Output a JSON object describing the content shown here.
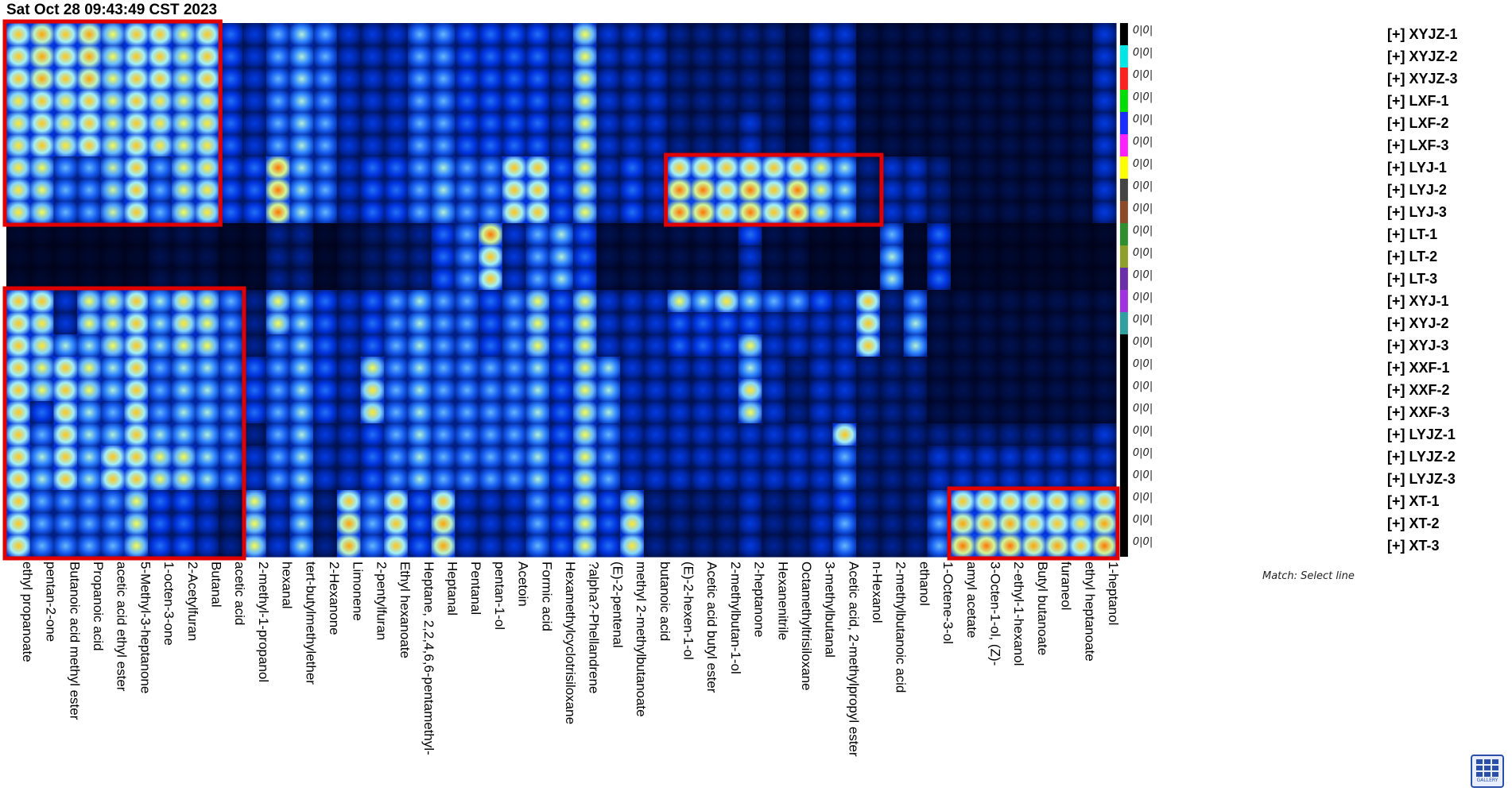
{
  "header": {
    "timestamp": "Sat Oct 28 09:43:49 CST 2023"
  },
  "footer": {
    "match_text": "Match: Select line",
    "gallery_label": "GALLERY"
  },
  "chart_data": {
    "type": "heatmap",
    "title": "",
    "row_marker": "0|0|",
    "samples": [
      {
        "name": "[+] XYJZ-1",
        "color": "#000000"
      },
      {
        "name": "[+] XYJZ-2",
        "color": "#00e5e5"
      },
      {
        "name": "[+] XYJZ-3",
        "color": "#ff2020"
      },
      {
        "name": "[+] LXF-1",
        "color": "#00dd00"
      },
      {
        "name": "[+] LXF-2",
        "color": "#1a2cff"
      },
      {
        "name": "[+] LXF-3",
        "color": "#ff20ff"
      },
      {
        "name": "[+] LYJ-1",
        "color": "#ffff00"
      },
      {
        "name": "[+] LYJ-2",
        "color": "#444444"
      },
      {
        "name": "[+] LYJ-3",
        "color": "#8b4a2a"
      },
      {
        "name": "[+] LT-1",
        "color": "#2f8f2f"
      },
      {
        "name": "[+] LT-2",
        "color": "#8fa02a"
      },
      {
        "name": "[+] LT-3",
        "color": "#6a2fa8"
      },
      {
        "name": "[+] XYJ-1",
        "color": "#a032e0"
      },
      {
        "name": "[+] XYJ-2",
        "color": "#2f9f9f"
      },
      {
        "name": "[+] XYJ-3",
        "color": "#000000"
      },
      {
        "name": "[+] XXF-1",
        "color": "#000000"
      },
      {
        "name": "[+] XXF-2",
        "color": "#000000"
      },
      {
        "name": "[+] XXF-3",
        "color": "#000000"
      },
      {
        "name": "[+] LYJZ-1",
        "color": "#000000"
      },
      {
        "name": "[+] LYJZ-2",
        "color": "#000000"
      },
      {
        "name": "[+] LYJZ-3",
        "color": "#000000"
      },
      {
        "name": "[+] XT-1",
        "color": "#000000"
      },
      {
        "name": "[+] XT-2",
        "color": "#000000"
      },
      {
        "name": "[+] XT-3",
        "color": "#000000"
      }
    ],
    "compounds": [
      "ethyl propanoate",
      "pentan-2-one",
      "Butanoic acid methyl ester",
      "Propanoic acid",
      "acetic acid ethyl ester",
      "5-Methyl-3-heptanone",
      "1-octen-3-one",
      "2-Acetylfuran",
      "Butanal",
      "acetic acid",
      "2-methyl-1-propanol",
      "hexanal",
      "tert-butylmethylether",
      "2-Hexanone",
      "Limonene",
      "2-pentylfuran",
      "Ethyl hexanoate",
      "Heptane, 2,2,4,6,6-pentamethyl-",
      "Heptanal",
      "Pentanal",
      "pentan-1-ol",
      "Acetoin",
      "Formic acid",
      "Hexamethylcyclotrisiloxane",
      "?alpha?-Phellandrene",
      "(E)-2-pentenal",
      "methyl 2-methylbutanoate",
      "butanoic acid",
      "(E)-2-hexen-1-ol",
      "Acetic acid butyl ester",
      "2-methylbutan-1-ol",
      "2-heptanone",
      "Hexanenitrile",
      "Octamethyltrisiloxane",
      "3-methylbutanal",
      "Acetic acid, 2-methylpropyl ester",
      "n-Hexanol",
      "2-methylbutanoic acid",
      "ethanol",
      "1-Octene-3-ol",
      "amyl acetate",
      "3-Octen-1-ol, (Z)-",
      "2-ethyl-1-hexanol",
      "Butyl butanoate",
      "furaneol",
      "ethyl heptanoate",
      "1-heptanol"
    ],
    "colorscale": [
      "#000010",
      "#001a6e",
      "#0033dd",
      "#2a7fff",
      "#9ff0ff",
      "#ffff40",
      "#ffa000",
      "#ff1000"
    ],
    "highlight_color": "#e00000",
    "values": [
      [
        0.8,
        0.85,
        0.8,
        0.85,
        0.7,
        0.8,
        0.8,
        0.7,
        0.8,
        0.4,
        0.3,
        0.5,
        0.6,
        0.5,
        0.3,
        0.3,
        0.3,
        0.5,
        0.5,
        0.4,
        0.4,
        0.4,
        0.4,
        0.3,
        0.7,
        0.3,
        0.3,
        0.3,
        0.2,
        0.2,
        0.2,
        0.2,
        0.2,
        0.1,
        0.3,
        0.3,
        0.1,
        0.1,
        0.1,
        0.1,
        0.1,
        0.1,
        0.1,
        0.1,
        0.1,
        0.1,
        0.3
      ],
      [
        0.8,
        0.85,
        0.8,
        0.85,
        0.7,
        0.8,
        0.8,
        0.7,
        0.8,
        0.4,
        0.3,
        0.5,
        0.6,
        0.5,
        0.3,
        0.3,
        0.3,
        0.5,
        0.5,
        0.4,
        0.4,
        0.4,
        0.4,
        0.3,
        0.7,
        0.3,
        0.3,
        0.3,
        0.2,
        0.2,
        0.2,
        0.2,
        0.2,
        0.1,
        0.3,
        0.3,
        0.1,
        0.1,
        0.1,
        0.1,
        0.1,
        0.1,
        0.1,
        0.1,
        0.1,
        0.1,
        0.3
      ],
      [
        0.8,
        0.85,
        0.8,
        0.85,
        0.7,
        0.8,
        0.8,
        0.7,
        0.8,
        0.4,
        0.3,
        0.5,
        0.6,
        0.5,
        0.3,
        0.3,
        0.3,
        0.5,
        0.5,
        0.4,
        0.4,
        0.4,
        0.4,
        0.3,
        0.7,
        0.3,
        0.3,
        0.3,
        0.2,
        0.2,
        0.2,
        0.2,
        0.2,
        0.1,
        0.3,
        0.3,
        0.1,
        0.1,
        0.1,
        0.1,
        0.1,
        0.1,
        0.1,
        0.1,
        0.1,
        0.1,
        0.3
      ],
      [
        0.75,
        0.8,
        0.75,
        0.8,
        0.7,
        0.8,
        0.75,
        0.7,
        0.75,
        0.4,
        0.3,
        0.5,
        0.6,
        0.5,
        0.3,
        0.3,
        0.3,
        0.5,
        0.5,
        0.4,
        0.4,
        0.4,
        0.4,
        0.3,
        0.7,
        0.3,
        0.3,
        0.3,
        0.2,
        0.2,
        0.2,
        0.2,
        0.2,
        0.1,
        0.3,
        0.3,
        0.1,
        0.1,
        0.1,
        0.1,
        0.1,
        0.1,
        0.1,
        0.1,
        0.1,
        0.1,
        0.3
      ],
      [
        0.75,
        0.8,
        0.75,
        0.8,
        0.7,
        0.8,
        0.75,
        0.7,
        0.75,
        0.4,
        0.3,
        0.5,
        0.6,
        0.5,
        0.3,
        0.3,
        0.3,
        0.5,
        0.5,
        0.4,
        0.4,
        0.4,
        0.4,
        0.3,
        0.7,
        0.3,
        0.3,
        0.3,
        0.2,
        0.2,
        0.2,
        0.3,
        0.2,
        0.1,
        0.3,
        0.3,
        0.1,
        0.1,
        0.1,
        0.1,
        0.1,
        0.1,
        0.1,
        0.1,
        0.1,
        0.1,
        0.3
      ],
      [
        0.75,
        0.8,
        0.75,
        0.8,
        0.7,
        0.8,
        0.75,
        0.7,
        0.75,
        0.4,
        0.3,
        0.5,
        0.6,
        0.5,
        0.3,
        0.3,
        0.3,
        0.5,
        0.5,
        0.4,
        0.4,
        0.4,
        0.4,
        0.3,
        0.7,
        0.3,
        0.3,
        0.3,
        0.2,
        0.2,
        0.2,
        0.3,
        0.2,
        0.1,
        0.3,
        0.3,
        0.1,
        0.1,
        0.1,
        0.1,
        0.1,
        0.1,
        0.1,
        0.1,
        0.1,
        0.1,
        0.3
      ],
      [
        0.75,
        0.7,
        0.5,
        0.5,
        0.65,
        0.8,
        0.5,
        0.7,
        0.75,
        0.4,
        0.4,
        0.9,
        0.6,
        0.5,
        0.3,
        0.4,
        0.4,
        0.5,
        0.6,
        0.5,
        0.5,
        0.8,
        0.8,
        0.4,
        0.7,
        0.3,
        0.4,
        0.3,
        0.8,
        0.8,
        0.8,
        0.8,
        0.8,
        0.8,
        0.7,
        0.6,
        0.2,
        0.3,
        0.3,
        0.2,
        0.1,
        0.1,
        0.1,
        0.1,
        0.1,
        0.1,
        0.3
      ],
      [
        0.75,
        0.7,
        0.5,
        0.5,
        0.65,
        0.8,
        0.5,
        0.7,
        0.75,
        0.4,
        0.4,
        0.9,
        0.6,
        0.5,
        0.3,
        0.4,
        0.4,
        0.5,
        0.6,
        0.5,
        0.5,
        0.8,
        0.8,
        0.4,
        0.7,
        0.3,
        0.4,
        0.3,
        0.9,
        0.9,
        0.8,
        0.9,
        0.8,
        0.9,
        0.7,
        0.6,
        0.2,
        0.3,
        0.3,
        0.2,
        0.1,
        0.1,
        0.1,
        0.1,
        0.1,
        0.1,
        0.3
      ],
      [
        0.75,
        0.7,
        0.5,
        0.5,
        0.65,
        0.8,
        0.5,
        0.7,
        0.75,
        0.4,
        0.4,
        0.9,
        0.6,
        0.5,
        0.3,
        0.4,
        0.4,
        0.5,
        0.6,
        0.5,
        0.5,
        0.8,
        0.8,
        0.4,
        0.7,
        0.3,
        0.4,
        0.3,
        0.9,
        0.9,
        0.8,
        0.9,
        0.8,
        0.9,
        0.7,
        0.6,
        0.2,
        0.3,
        0.3,
        0.2,
        0.1,
        0.1,
        0.1,
        0.1,
        0.1,
        0.1,
        0.3
      ],
      [
        0.05,
        0.05,
        0.05,
        0.05,
        0.05,
        0.05,
        0.1,
        0.1,
        0.1,
        0.05,
        0.05,
        0.2,
        0.2,
        0.05,
        0.1,
        0.15,
        0.2,
        0.2,
        0.4,
        0.5,
        0.9,
        0.3,
        0.5,
        0.6,
        0.4,
        0.1,
        0.1,
        0.1,
        0.1,
        0.1,
        0.1,
        0.4,
        0.1,
        0.1,
        0.05,
        0.05,
        0.05,
        0.5,
        0.05,
        0.4,
        0.05,
        0.05,
        0.05,
        0.05,
        0.05,
        0.05,
        0.05
      ],
      [
        0.05,
        0.05,
        0.05,
        0.05,
        0.05,
        0.05,
        0.1,
        0.1,
        0.1,
        0.05,
        0.05,
        0.2,
        0.2,
        0.05,
        0.1,
        0.15,
        0.2,
        0.2,
        0.4,
        0.5,
        0.8,
        0.3,
        0.5,
        0.6,
        0.4,
        0.1,
        0.1,
        0.1,
        0.1,
        0.1,
        0.1,
        0.3,
        0.1,
        0.1,
        0.05,
        0.05,
        0.05,
        0.6,
        0.05,
        0.4,
        0.05,
        0.05,
        0.05,
        0.05,
        0.05,
        0.05,
        0.05
      ],
      [
        0.05,
        0.05,
        0.05,
        0.05,
        0.05,
        0.05,
        0.1,
        0.1,
        0.1,
        0.05,
        0.05,
        0.2,
        0.2,
        0.05,
        0.1,
        0.15,
        0.2,
        0.2,
        0.4,
        0.5,
        0.8,
        0.3,
        0.5,
        0.6,
        0.4,
        0.1,
        0.1,
        0.1,
        0.1,
        0.1,
        0.1,
        0.3,
        0.1,
        0.1,
        0.05,
        0.05,
        0.05,
        0.6,
        0.05,
        0.4,
        0.05,
        0.05,
        0.05,
        0.05,
        0.05,
        0.05,
        0.05
      ],
      [
        0.8,
        0.8,
        0.3,
        0.7,
        0.7,
        0.8,
        0.6,
        0.75,
        0.7,
        0.5,
        0.2,
        0.7,
        0.6,
        0.4,
        0.3,
        0.4,
        0.5,
        0.6,
        0.5,
        0.5,
        0.4,
        0.5,
        0.7,
        0.4,
        0.7,
        0.3,
        0.3,
        0.3,
        0.7,
        0.6,
        0.75,
        0.6,
        0.5,
        0.5,
        0.4,
        0.3,
        0.8,
        0.2,
        0.5,
        0.1,
        0.1,
        0.1,
        0.1,
        0.1,
        0.1,
        0.1,
        0.1
      ],
      [
        0.8,
        0.75,
        0.3,
        0.7,
        0.7,
        0.8,
        0.6,
        0.75,
        0.7,
        0.5,
        0.2,
        0.7,
        0.6,
        0.4,
        0.3,
        0.4,
        0.5,
        0.6,
        0.5,
        0.5,
        0.4,
        0.5,
        0.7,
        0.4,
        0.7,
        0.3,
        0.3,
        0.3,
        0.4,
        0.4,
        0.4,
        0.4,
        0.3,
        0.3,
        0.3,
        0.3,
        0.8,
        0.2,
        0.6,
        0.1,
        0.1,
        0.1,
        0.1,
        0.1,
        0.1,
        0.1,
        0.1
      ],
      [
        0.8,
        0.75,
        0.6,
        0.6,
        0.7,
        0.8,
        0.6,
        0.7,
        0.7,
        0.5,
        0.2,
        0.5,
        0.6,
        0.4,
        0.3,
        0.4,
        0.5,
        0.6,
        0.5,
        0.5,
        0.4,
        0.5,
        0.7,
        0.4,
        0.7,
        0.3,
        0.3,
        0.3,
        0.4,
        0.4,
        0.4,
        0.7,
        0.3,
        0.3,
        0.3,
        0.3,
        0.8,
        0.2,
        0.6,
        0.1,
        0.1,
        0.1,
        0.1,
        0.1,
        0.1,
        0.1,
        0.1
      ],
      [
        0.8,
        0.7,
        0.8,
        0.7,
        0.6,
        0.8,
        0.5,
        0.6,
        0.6,
        0.5,
        0.4,
        0.5,
        0.6,
        0.4,
        0.3,
        0.7,
        0.5,
        0.6,
        0.5,
        0.5,
        0.5,
        0.5,
        0.6,
        0.4,
        0.7,
        0.6,
        0.3,
        0.3,
        0.3,
        0.3,
        0.3,
        0.6,
        0.3,
        0.2,
        0.3,
        0.3,
        0.2,
        0.2,
        0.2,
        0.1,
        0.1,
        0.1,
        0.1,
        0.1,
        0.1,
        0.1,
        0.1
      ],
      [
        0.8,
        0.7,
        0.8,
        0.7,
        0.6,
        0.8,
        0.5,
        0.6,
        0.6,
        0.5,
        0.4,
        0.5,
        0.6,
        0.4,
        0.3,
        0.75,
        0.5,
        0.6,
        0.5,
        0.5,
        0.5,
        0.5,
        0.6,
        0.4,
        0.7,
        0.6,
        0.3,
        0.3,
        0.3,
        0.3,
        0.3,
        0.75,
        0.3,
        0.2,
        0.3,
        0.3,
        0.2,
        0.2,
        0.2,
        0.1,
        0.1,
        0.1,
        0.1,
        0.1,
        0.1,
        0.1,
        0.1
      ],
      [
        0.8,
        0.4,
        0.8,
        0.6,
        0.5,
        0.8,
        0.5,
        0.6,
        0.6,
        0.5,
        0.4,
        0.5,
        0.6,
        0.4,
        0.3,
        0.75,
        0.5,
        0.6,
        0.5,
        0.5,
        0.5,
        0.5,
        0.6,
        0.4,
        0.7,
        0.6,
        0.3,
        0.3,
        0.3,
        0.3,
        0.3,
        0.7,
        0.3,
        0.2,
        0.3,
        0.3,
        0.2,
        0.2,
        0.2,
        0.1,
        0.1,
        0.1,
        0.1,
        0.1,
        0.1,
        0.1,
        0.1
      ],
      [
        0.8,
        0.5,
        0.8,
        0.6,
        0.6,
        0.8,
        0.6,
        0.6,
        0.6,
        0.5,
        0.2,
        0.5,
        0.6,
        0.3,
        0.3,
        0.4,
        0.5,
        0.6,
        0.5,
        0.5,
        0.5,
        0.5,
        0.6,
        0.4,
        0.7,
        0.5,
        0.3,
        0.3,
        0.3,
        0.3,
        0.3,
        0.3,
        0.3,
        0.3,
        0.3,
        0.8,
        0.2,
        0.2,
        0.2,
        0.2,
        0.2,
        0.2,
        0.2,
        0.2,
        0.2,
        0.2,
        0.3
      ],
      [
        0.8,
        0.6,
        0.8,
        0.6,
        0.8,
        0.8,
        0.7,
        0.7,
        0.6,
        0.5,
        0.3,
        0.5,
        0.6,
        0.3,
        0.3,
        0.4,
        0.5,
        0.6,
        0.5,
        0.5,
        0.5,
        0.5,
        0.6,
        0.4,
        0.7,
        0.5,
        0.3,
        0.3,
        0.3,
        0.3,
        0.3,
        0.3,
        0.3,
        0.3,
        0.3,
        0.5,
        0.2,
        0.2,
        0.2,
        0.3,
        0.3,
        0.3,
        0.3,
        0.3,
        0.3,
        0.3,
        0.3
      ],
      [
        0.8,
        0.6,
        0.8,
        0.6,
        0.8,
        0.8,
        0.7,
        0.7,
        0.6,
        0.5,
        0.3,
        0.5,
        0.6,
        0.3,
        0.3,
        0.4,
        0.5,
        0.6,
        0.5,
        0.5,
        0.5,
        0.5,
        0.6,
        0.4,
        0.7,
        0.5,
        0.3,
        0.3,
        0.3,
        0.3,
        0.3,
        0.3,
        0.3,
        0.3,
        0.3,
        0.5,
        0.2,
        0.2,
        0.2,
        0.3,
        0.3,
        0.3,
        0.3,
        0.3,
        0.3,
        0.3,
        0.3
      ],
      [
        0.8,
        0.5,
        0.5,
        0.5,
        0.5,
        0.7,
        0.4,
        0.4,
        0.3,
        0.2,
        0.7,
        0.3,
        0.6,
        0.2,
        0.8,
        0.5,
        0.8,
        0.4,
        0.8,
        0.3,
        0.3,
        0.3,
        0.5,
        0.4,
        0.7,
        0.4,
        0.7,
        0.2,
        0.2,
        0.2,
        0.2,
        0.3,
        0.2,
        0.2,
        0.3,
        0.4,
        0.2,
        0.2,
        0.2,
        0.5,
        0.8,
        0.8,
        0.8,
        0.8,
        0.8,
        0.7,
        0.8
      ],
      [
        0.8,
        0.5,
        0.5,
        0.5,
        0.5,
        0.7,
        0.4,
        0.4,
        0.3,
        0.2,
        0.7,
        0.3,
        0.6,
        0.2,
        0.85,
        0.5,
        0.8,
        0.4,
        0.85,
        0.3,
        0.3,
        0.3,
        0.5,
        0.4,
        0.7,
        0.4,
        0.75,
        0.2,
        0.2,
        0.2,
        0.2,
        0.3,
        0.2,
        0.2,
        0.3,
        0.5,
        0.2,
        0.2,
        0.2,
        0.5,
        0.85,
        0.85,
        0.85,
        0.8,
        0.8,
        0.75,
        0.85
      ],
      [
        0.8,
        0.5,
        0.5,
        0.5,
        0.5,
        0.7,
        0.4,
        0.4,
        0.3,
        0.2,
        0.7,
        0.3,
        0.6,
        0.2,
        0.85,
        0.5,
        0.8,
        0.4,
        0.85,
        0.3,
        0.3,
        0.3,
        0.5,
        0.4,
        0.7,
        0.4,
        0.75,
        0.2,
        0.2,
        0.2,
        0.2,
        0.3,
        0.2,
        0.2,
        0.3,
        0.5,
        0.2,
        0.2,
        0.2,
        0.5,
        0.9,
        0.9,
        0.9,
        0.85,
        0.85,
        0.8,
        0.9
      ]
    ],
    "highlights": [
      {
        "row_start": 0,
        "row_end": 8,
        "col_start": 0,
        "col_end": 8
      },
      {
        "row_start": 12,
        "row_end": 23,
        "col_start": 0,
        "col_end": 9
      },
      {
        "row_start": 6,
        "row_end": 8,
        "col_start": 28,
        "col_end": 36
      },
      {
        "row_start": 21,
        "row_end": 23,
        "col_start": 40,
        "col_end": 46
      }
    ]
  }
}
